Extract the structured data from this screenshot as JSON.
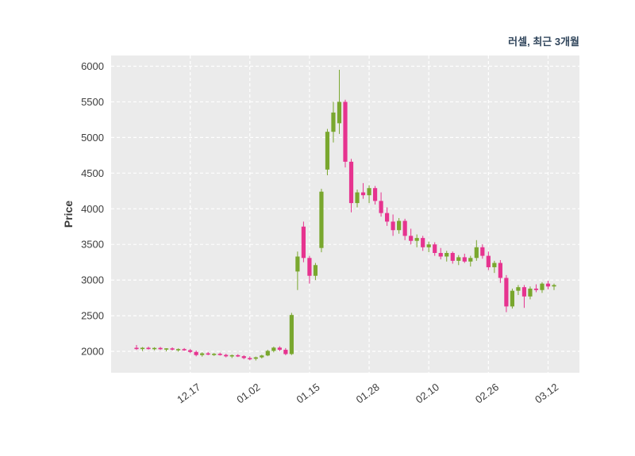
{
  "title": "러셀, 최근 3개월",
  "colors": {
    "up": "#79a72e",
    "down": "#e6338f",
    "plot_bg": "#ebebeb",
    "grid": "#ffffff",
    "tick_text": "#3d3d3d",
    "title_text": "#31465c"
  },
  "chart_data": {
    "type": "candlestick",
    "title": "러셀, 최근 3개월",
    "ylabel": "Price",
    "ylim": [
      1700,
      6150
    ],
    "yticks": [
      2000,
      2500,
      3000,
      3500,
      4000,
      4500,
      5000,
      5500,
      6000
    ],
    "grid": true,
    "legend": false,
    "xticks": [
      {
        "index": 9,
        "label": "12.17"
      },
      {
        "index": 19,
        "label": "01.02"
      },
      {
        "index": 29,
        "label": "01.15"
      },
      {
        "index": 39,
        "label": "01.28"
      },
      {
        "index": 49,
        "label": "02.10"
      },
      {
        "index": 59,
        "label": "02.26"
      },
      {
        "index": 69,
        "label": "03.12"
      }
    ],
    "candles": [
      [
        2050,
        2090,
        2020,
        2035
      ],
      [
        2035,
        2060,
        2005,
        2050
      ],
      [
        2050,
        2065,
        2025,
        2038
      ],
      [
        2038,
        2058,
        2015,
        2048
      ],
      [
        2048,
        2062,
        2020,
        2030
      ],
      [
        2030,
        2045,
        2000,
        2042
      ],
      [
        2042,
        2056,
        2012,
        2026
      ],
      [
        2026,
        2042,
        1996,
        2032
      ],
      [
        2032,
        2046,
        2006,
        2016
      ],
      [
        2016,
        2032,
        1976,
        1992
      ],
      [
        1992,
        2012,
        1930,
        1948
      ],
      [
        1948,
        1986,
        1926,
        1972
      ],
      [
        1972,
        1992,
        1946,
        1956
      ],
      [
        1956,
        1976,
        1936,
        1966
      ],
      [
        1966,
        1982,
        1940,
        1950
      ],
      [
        1950,
        1966,
        1916,
        1930
      ],
      [
        1930,
        1956,
        1906,
        1946
      ],
      [
        1946,
        1960,
        1920,
        1932
      ],
      [
        1932,
        1946,
        1890,
        1906
      ],
      [
        1906,
        1930,
        1876,
        1896
      ],
      [
        1896,
        1926,
        1872,
        1916
      ],
      [
        1916,
        1952,
        1900,
        1942
      ],
      [
        1942,
        2022,
        1932,
        2006
      ],
      [
        2006,
        2066,
        1986,
        2052
      ],
      [
        2052,
        2072,
        2002,
        2022
      ],
      [
        2022,
        2046,
        1946,
        1962
      ],
      [
        1962,
        2540,
        1948,
        2510
      ],
      [
        3120,
        3400,
        2860,
        3330
      ],
      [
        3750,
        3820,
        3250,
        3310
      ],
      [
        3310,
        3340,
        2950,
        3060
      ],
      [
        3060,
        3240,
        3000,
        3210
      ],
      [
        3450,
        4280,
        3390,
        4240
      ],
      [
        4550,
        5120,
        4470,
        5080
      ],
      [
        5080,
        5500,
        4930,
        5350
      ],
      [
        5200,
        5950,
        5050,
        5500
      ],
      [
        5500,
        5530,
        4580,
        4660
      ],
      [
        4660,
        4700,
        3950,
        4080
      ],
      [
        4080,
        4270,
        4020,
        4230
      ],
      [
        4230,
        4360,
        4140,
        4190
      ],
      [
        4190,
        4330,
        4080,
        4290
      ],
      [
        4290,
        4320,
        4060,
        4110
      ],
      [
        4110,
        4230,
        3890,
        3940
      ],
      [
        3940,
        4020,
        3760,
        3820
      ],
      [
        3820,
        3920,
        3620,
        3700
      ],
      [
        3700,
        3870,
        3650,
        3830
      ],
      [
        3830,
        3860,
        3560,
        3620
      ],
      [
        3620,
        3720,
        3500,
        3550
      ],
      [
        3550,
        3640,
        3460,
        3590
      ],
      [
        3590,
        3620,
        3410,
        3460
      ],
      [
        3460,
        3540,
        3390,
        3500
      ],
      [
        3500,
        3530,
        3340,
        3380
      ],
      [
        3380,
        3450,
        3290,
        3330
      ],
      [
        3330,
        3410,
        3260,
        3380
      ],
      [
        3380,
        3400,
        3230,
        3270
      ],
      [
        3270,
        3350,
        3210,
        3320
      ],
      [
        3320,
        3370,
        3240,
        3260
      ],
      [
        3260,
        3340,
        3190,
        3310
      ],
      [
        3310,
        3560,
        3270,
        3460
      ],
      [
        3460,
        3500,
        3300,
        3340
      ],
      [
        3340,
        3400,
        3140,
        3180
      ],
      [
        3180,
        3270,
        3100,
        3240
      ],
      [
        3240,
        3280,
        2960,
        3030
      ],
      [
        3030,
        3070,
        2550,
        2630
      ],
      [
        2630,
        2880,
        2600,
        2850
      ],
      [
        2850,
        2930,
        2790,
        2900
      ],
      [
        2900,
        2930,
        2610,
        2770
      ],
      [
        2770,
        2910,
        2730,
        2880
      ],
      [
        2880,
        2940,
        2830,
        2860
      ],
      [
        2860,
        2970,
        2820,
        2950
      ],
      [
        2950,
        2990,
        2870,
        2910
      ],
      [
        2910,
        2950,
        2860,
        2930
      ]
    ]
  }
}
